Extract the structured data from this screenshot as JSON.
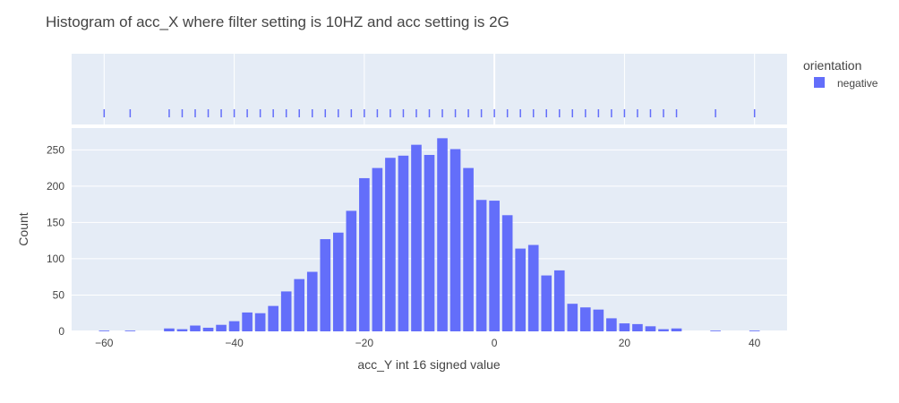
{
  "chart_data": {
    "type": "bar",
    "title": "Histogram of acc_X where filter setting is 10HZ and acc setting is 2G",
    "xlabel": "acc_Y int 16 signed value",
    "ylabel": "Count",
    "xlim": [
      -65,
      45
    ],
    "ylim": [
      0,
      280
    ],
    "xticks": [
      -60,
      -40,
      -20,
      0,
      20,
      40
    ],
    "yticks": [
      0,
      50,
      100,
      150,
      200,
      250
    ],
    "grid": true,
    "legend": {
      "title": "orientation",
      "position": "top-right"
    },
    "colors": {
      "bar": "#636efa",
      "plot_bg": "#e5ecf6",
      "grid": "#ffffff"
    },
    "series": [
      {
        "name": "negative",
        "x": [
          -60,
          -56,
          -50,
          -48,
          -46,
          -44,
          -42,
          -40,
          -38,
          -36,
          -34,
          -32,
          -30,
          -28,
          -26,
          -24,
          -22,
          -20,
          -18,
          -16,
          -14,
          -12,
          -10,
          -8,
          -6,
          -4,
          -2,
          0,
          2,
          4,
          6,
          8,
          10,
          12,
          14,
          16,
          18,
          20,
          22,
          24,
          26,
          28,
          34,
          40
        ],
        "values": [
          1,
          1,
          4,
          3,
          8,
          5,
          9,
          14,
          26,
          25,
          35,
          55,
          72,
          82,
          127,
          136,
          166,
          211,
          225,
          239,
          242,
          257,
          243,
          266,
          251,
          225,
          181,
          180,
          160,
          114,
          119,
          77,
          84,
          38,
          33,
          30,
          18,
          11,
          10,
          7,
          3,
          4,
          1,
          1
        ]
      }
    ]
  }
}
